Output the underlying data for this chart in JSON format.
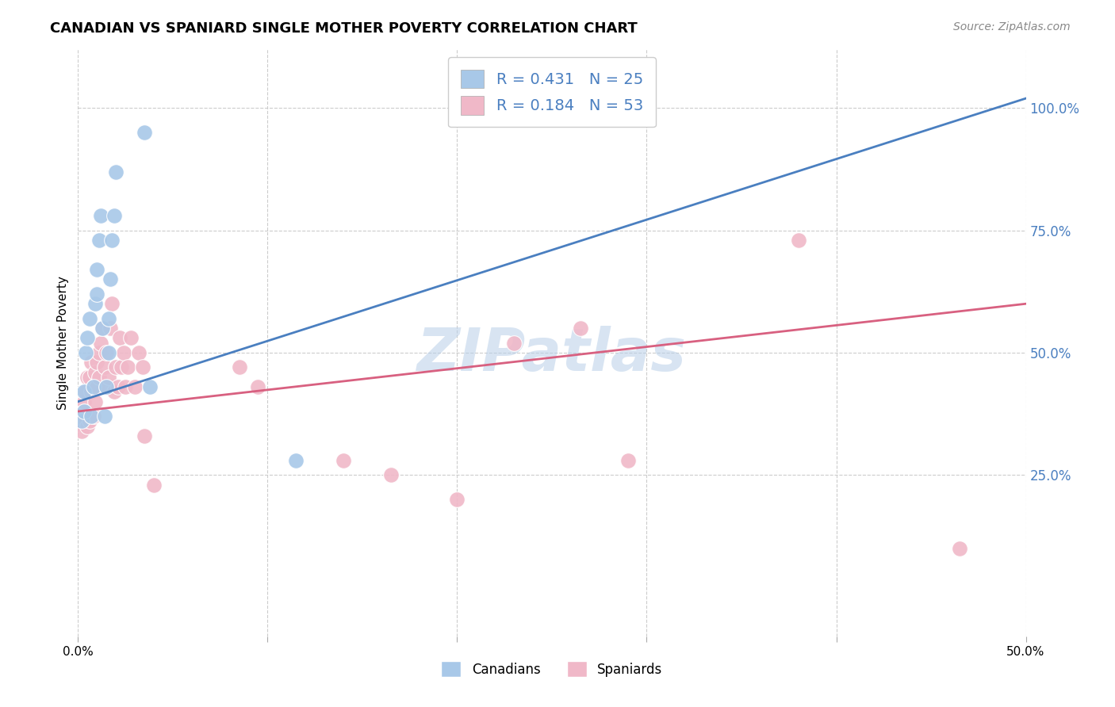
{
  "title": "CANADIAN VS SPANIARD SINGLE MOTHER POVERTY CORRELATION CHART",
  "source": "Source: ZipAtlas.com",
  "ylabel": "Single Mother Poverty",
  "watermark": "ZIPatlas",
  "xlim": [
    0.0,
    0.5
  ],
  "ylim": [
    -0.08,
    1.12
  ],
  "ytick_labels_right": [
    "100.0%",
    "75.0%",
    "50.0%",
    "25.0%"
  ],
  "ytick_vals_right": [
    1.0,
    0.75,
    0.5,
    0.25
  ],
  "canadian_color": "#a8c8e8",
  "spaniard_color": "#f0b8c8",
  "canadian_line_color": "#4a7fc0",
  "spaniard_line_color": "#d86080",
  "background_color": "#ffffff",
  "grid_color": "#cccccc",
  "canadian_R": 0.431,
  "spaniard_R": 0.184,
  "canadian_N": 25,
  "spaniard_N": 53,
  "canadians_x": [
    0.002,
    0.003,
    0.003,
    0.004,
    0.005,
    0.006,
    0.007,
    0.008,
    0.009,
    0.01,
    0.01,
    0.011,
    0.012,
    0.013,
    0.014,
    0.015,
    0.016,
    0.016,
    0.017,
    0.018,
    0.019,
    0.02,
    0.035,
    0.038,
    0.115
  ],
  "canadians_y": [
    0.36,
    0.38,
    0.42,
    0.5,
    0.53,
    0.57,
    0.37,
    0.43,
    0.6,
    0.62,
    0.67,
    0.73,
    0.78,
    0.55,
    0.37,
    0.43,
    0.5,
    0.57,
    0.65,
    0.73,
    0.78,
    0.87,
    0.95,
    0.43,
    0.28
  ],
  "spaniards_x": [
    0.001,
    0.002,
    0.002,
    0.003,
    0.003,
    0.004,
    0.004,
    0.005,
    0.005,
    0.006,
    0.006,
    0.007,
    0.007,
    0.008,
    0.008,
    0.009,
    0.009,
    0.01,
    0.01,
    0.011,
    0.011,
    0.012,
    0.013,
    0.014,
    0.015,
    0.015,
    0.016,
    0.017,
    0.018,
    0.019,
    0.02,
    0.021,
    0.022,
    0.023,
    0.024,
    0.025,
    0.026,
    0.028,
    0.03,
    0.032,
    0.034,
    0.035,
    0.04,
    0.085,
    0.095,
    0.14,
    0.165,
    0.2,
    0.23,
    0.265,
    0.29,
    0.38,
    0.465
  ],
  "spaniards_y": [
    0.36,
    0.34,
    0.38,
    0.37,
    0.4,
    0.36,
    0.42,
    0.35,
    0.45,
    0.36,
    0.45,
    0.48,
    0.42,
    0.37,
    0.43,
    0.4,
    0.46,
    0.43,
    0.48,
    0.5,
    0.45,
    0.52,
    0.55,
    0.47,
    0.43,
    0.5,
    0.45,
    0.55,
    0.6,
    0.42,
    0.47,
    0.43,
    0.53,
    0.47,
    0.5,
    0.43,
    0.47,
    0.53,
    0.43,
    0.5,
    0.47,
    0.33,
    0.23,
    0.47,
    0.43,
    0.28,
    0.25,
    0.2,
    0.52,
    0.55,
    0.28,
    0.73,
    0.1
  ]
}
